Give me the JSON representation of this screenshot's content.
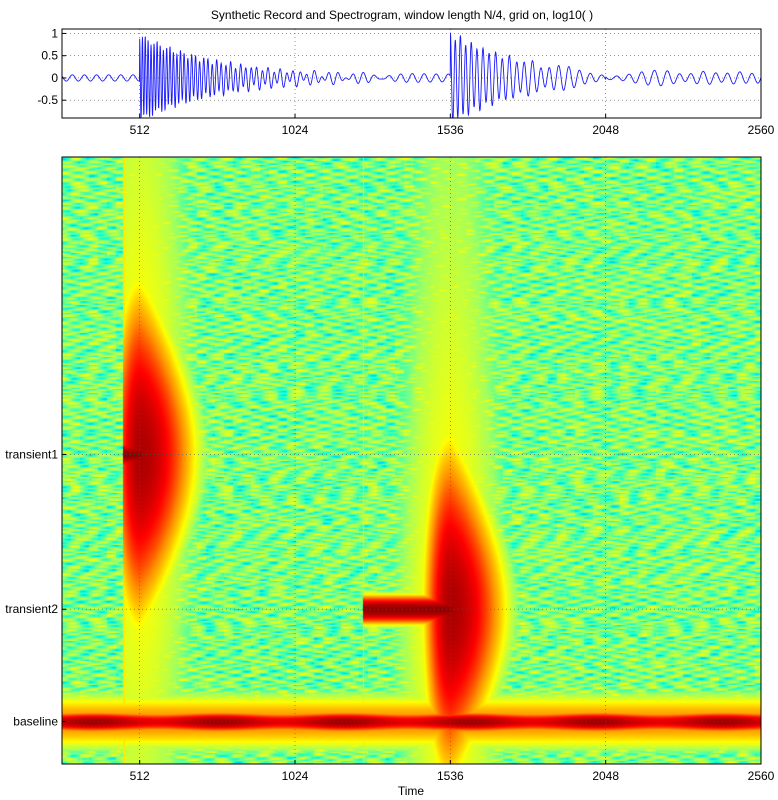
{
  "chart_data": [
    {
      "type": "line",
      "title": "Synthetic Record and Spectrogram, window length N/4, grid on, log10( )",
      "xlim": [
        256,
        2560
      ],
      "ylim": [
        -0.9,
        1.1
      ],
      "x_ticks": [
        512,
        1024,
        1536,
        2048,
        2560
      ],
      "y_ticks": [
        1,
        0.5,
        0,
        -0.5
      ],
      "grid": true,
      "series": [
        {
          "baseline_amplitude": 0.07,
          "baseline_period": 40,
          "transients": [
            {
              "onset": 512,
              "peak": 1.0,
              "trough": -0.9,
              "decay": 260,
              "period": 9
            },
            {
              "onset": 1536,
              "peak": 1.1,
              "trough": -0.9,
              "decay": 240,
              "period": 16
            }
          ],
          "late_amplitude": 0.12
        }
      ]
    },
    {
      "type": "heatmap",
      "xlabel": "Time",
      "xlim": [
        256,
        2560
      ],
      "x_ticks": [
        512,
        1024,
        1536,
        2048,
        2560
      ],
      "y_categories": [
        "transient1",
        "transient2",
        "baseline"
      ],
      "grid": true,
      "colormap": [
        "#00008f",
        "#0070ff",
        "#00ffe0",
        "#a0ff60",
        "#ffff00",
        "#ff9000",
        "#ff0000",
        "#800000"
      ],
      "bands": [
        {
          "name": "transient1",
          "center_time": 512,
          "onset": 455,
          "end_time": 1200
        },
        {
          "name": "transient2",
          "center_time": 1536,
          "onset": 1245,
          "end_time": 2180
        },
        {
          "name": "baseline",
          "center_time": 1408,
          "onset": 256,
          "end_time": 2560
        }
      ]
    }
  ]
}
